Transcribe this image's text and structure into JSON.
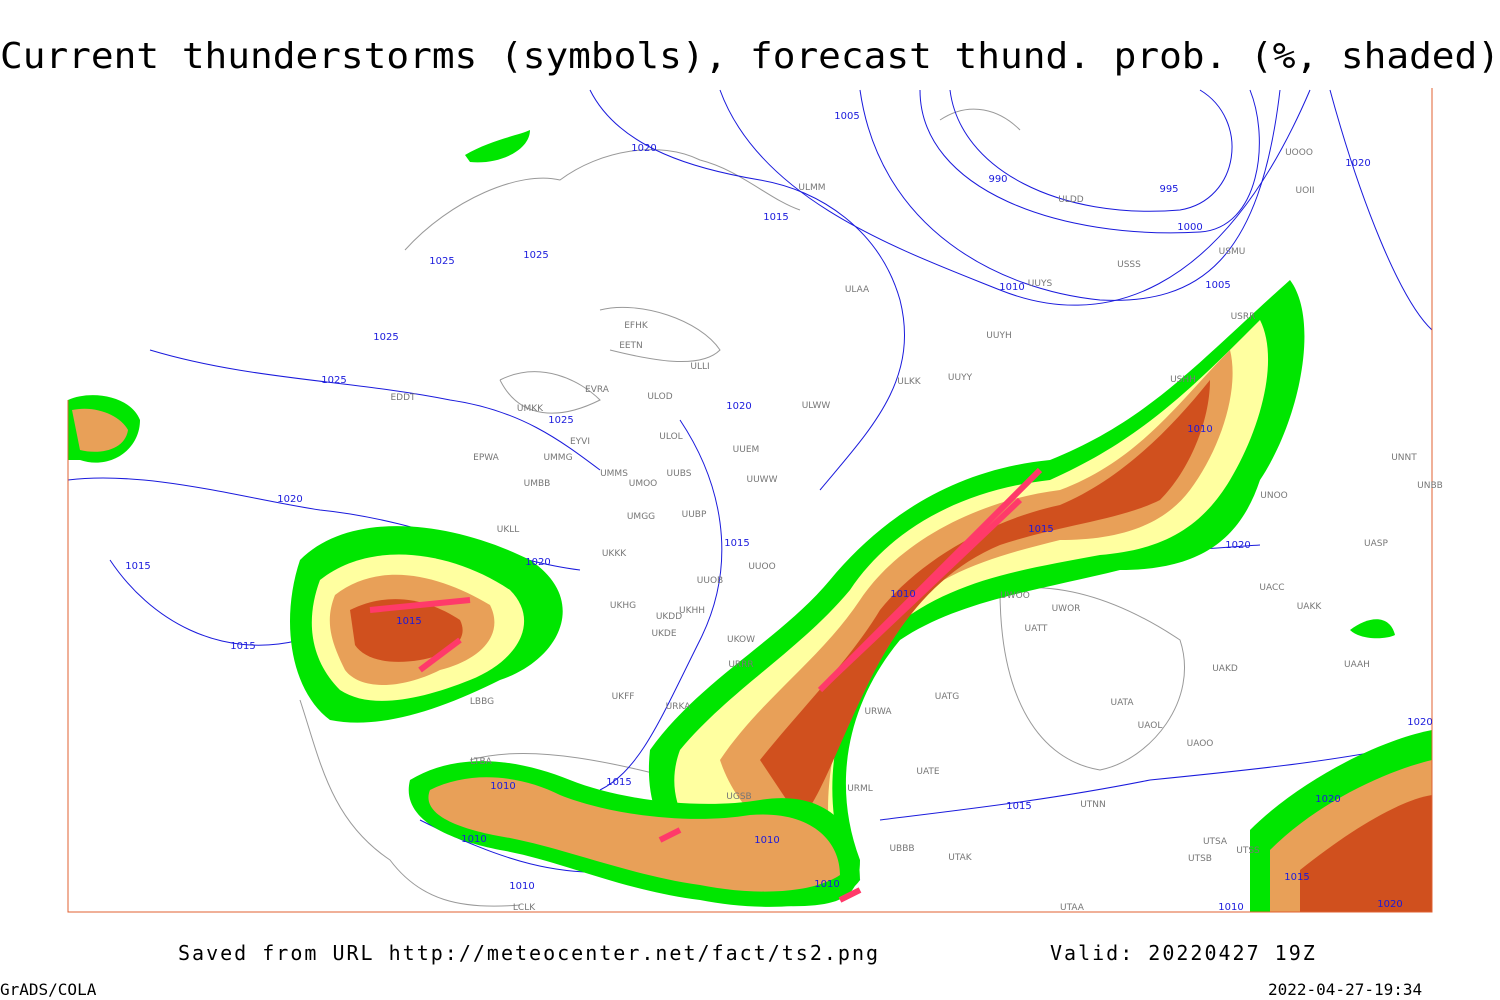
{
  "header": {
    "title": "Current thunderstorms (symbols), forecast thund. prob. (%, shaded)"
  },
  "footer": {
    "source": "Saved from URL http://meteocenter.net/fact/ts2.png",
    "valid": "Valid: 20220427 19Z",
    "software": "GrADS/COLA",
    "timestamp": "2022-04-27-19:34"
  },
  "isobar_labels": [
    "1020",
    "1005",
    "990",
    "995",
    "1000",
    "1015",
    "1025",
    "1025",
    "1025",
    "1025",
    "1025",
    "1020",
    "1020",
    "1010",
    "1005",
    "1020",
    "1015",
    "1015",
    "1020",
    "1015",
    "1015",
    "1010",
    "1015",
    "1010",
    "1020",
    "1010",
    "1015",
    "1010",
    "1010",
    "1010",
    "1010",
    "1015",
    "1020",
    "1015",
    "1010",
    "1020",
    "1020"
  ],
  "station_labels": [
    "EFHK",
    "EETN",
    "EVRA",
    "ULOD",
    "EDDT",
    "UMKK",
    "EYVI",
    "EPWA",
    "UMMG",
    "ULOL",
    "UUEM",
    "UMMS",
    "UMOO",
    "UUBS",
    "UUWW",
    "UMBB",
    "UKLL",
    "UMGG",
    "UUBP",
    "UKKK",
    "UUOO",
    "UUOB",
    "UKHG",
    "UKDD",
    "UKHH",
    "UKDE",
    "UKOW",
    "URRR",
    "UKFF",
    "URKA",
    "LBBG",
    "LTBA",
    "ULLI",
    "ULMM",
    "ULAA",
    "UUYS",
    "UUYH",
    "ULKK",
    "UUYY",
    "ULWW",
    "ULDD",
    "USMU",
    "USSS",
    "USRR",
    "USHH",
    "UNNT",
    "UNBB",
    "UNOO",
    "UASP",
    "UACC",
    "UAKK",
    "UAAH",
    "UAKD",
    "UATA",
    "UAOL",
    "UAOO",
    "UATG",
    "UATE",
    "URWA",
    "URML",
    "UBBB",
    "UTAK",
    "UTNN",
    "UTSA",
    "UTSB",
    "UTSS",
    "UTAA",
    "UWOO",
    "UWOR",
    "UATT",
    "UGSB",
    "LCLK",
    "UOOO",
    "UOII"
  ]
}
